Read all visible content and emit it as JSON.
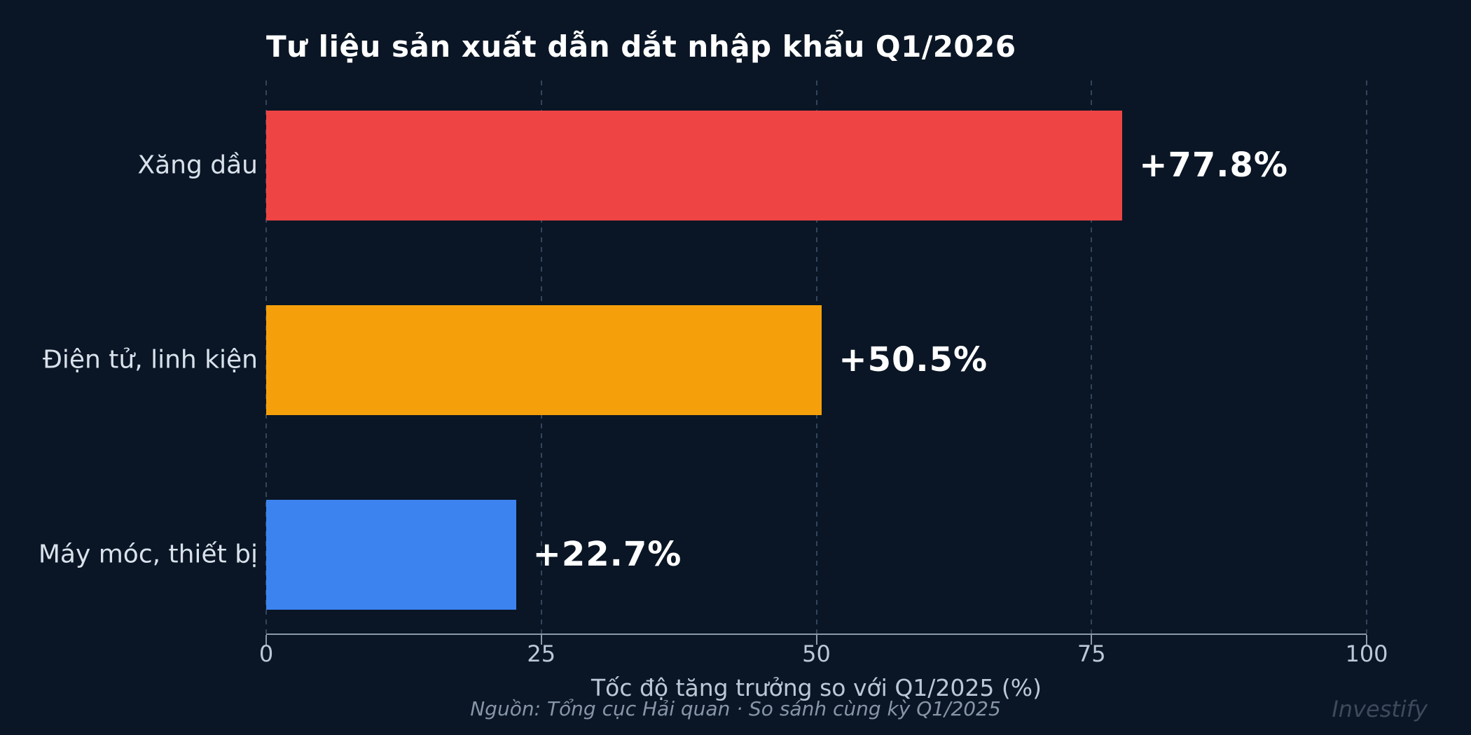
{
  "title": "Tư liệu sản xuất dẫn dắt nhập khẩu Q1/2026",
  "source_note": "Nguồn: Tổng cục Hải quan · So sánh cùng kỳ Q1/2025",
  "watermark": "Investify",
  "chart_data": {
    "type": "bar",
    "orientation": "horizontal",
    "title": "Tư liệu sản xuất dẫn dắt nhập khẩu Q1/2026",
    "categories": [
      "Xăng dầu",
      "Điện tử, linh kiện",
      "Máy móc, thiết bị"
    ],
    "values": [
      77.8,
      50.5,
      22.7
    ],
    "value_labels": [
      "+77.8%",
      "+50.5%",
      "+22.7%"
    ],
    "bar_colors": [
      "#EF4444",
      "#F5A00A",
      "#3C83F0"
    ],
    "xlabel": "Tốc độ tăng trưởng so với Q1/2025 (%)",
    "xlim": [
      0,
      100
    ],
    "xticks": [
      0,
      25,
      50,
      75,
      100
    ],
    "grid": {
      "vertical": true,
      "style": "dashed"
    },
    "legend": "none"
  },
  "colors": {
    "background": "#0A1625",
    "title": "#FFFFFF",
    "category_label": "#D9E2EC",
    "value_label": "#FFFFFF",
    "tick_label": "#BCC8D6",
    "axis_label": "#BCC8D6",
    "axis_line": "#8C99AB",
    "gridline": "rgba(116,145,185,0.38)",
    "source": "#8795A8",
    "watermark": "#3D4A5C"
  }
}
